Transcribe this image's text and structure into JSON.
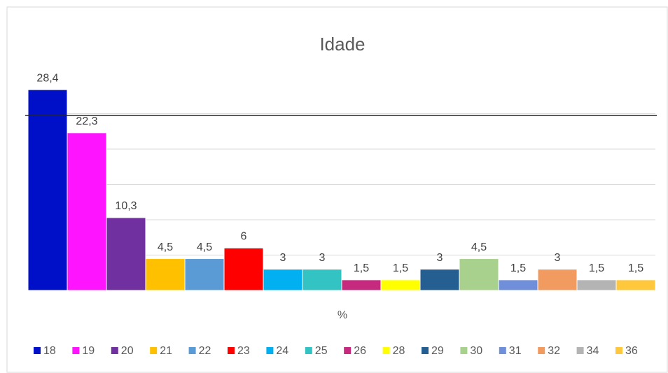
{
  "chart_data": {
    "type": "bar",
    "title": "Idade",
    "x_label": "%",
    "categories": [
      "%"
    ],
    "series": [
      {
        "name": "18",
        "color": "#0010c8",
        "values": [
          28.4
        ],
        "value_labels": [
          "28,4"
        ]
      },
      {
        "name": "19",
        "color": "#ff14ff",
        "values": [
          22.3
        ],
        "value_labels": [
          "22,3"
        ]
      },
      {
        "name": "20",
        "color": "#7030a0",
        "values": [
          10.3
        ],
        "value_labels": [
          "10,3"
        ]
      },
      {
        "name": "21",
        "color": "#ffc000",
        "values": [
          4.5
        ],
        "value_labels": [
          "4,5"
        ]
      },
      {
        "name": "22",
        "color": "#5b9bd5",
        "values": [
          4.5
        ],
        "value_labels": [
          "4,5"
        ]
      },
      {
        "name": "23",
        "color": "#ff0000",
        "values": [
          6
        ]
      },
      {
        "name": "24",
        "color": "#00b0f0",
        "values": [
          3
        ]
      },
      {
        "name": "25",
        "color": "#33c3c3",
        "values": [
          3
        ]
      },
      {
        "name": "26",
        "color": "#c62a7f",
        "values": [
          1.5
        ],
        "value_labels": [
          "1,5"
        ]
      },
      {
        "name": "28",
        "color": "#ffff00",
        "values": [
          1.5
        ],
        "value_labels": [
          "1,5"
        ]
      },
      {
        "name": "29",
        "color": "#255e91",
        "values": [
          3
        ]
      },
      {
        "name": "30",
        "color": "#a9d18e",
        "values": [
          4.5
        ],
        "value_labels": [
          "4,5"
        ]
      },
      {
        "name": "31",
        "color": "#6f8fdb",
        "values": [
          1.5
        ],
        "value_labels": [
          "1,5"
        ]
      },
      {
        "name": "32",
        "color": "#f19b61",
        "values": [
          3
        ]
      },
      {
        "name": "34",
        "color": "#b4b4b4",
        "values": [
          1.5
        ],
        "value_labels": [
          "1,5"
        ]
      },
      {
        "name": "36",
        "color": "#ffc83c",
        "values": [
          1.5
        ],
        "value_labels": [
          "1,5"
        ]
      }
    ],
    "ylim": [
      0,
      30
    ],
    "yticks": [
      0,
      5,
      10,
      15,
      20,
      25
    ],
    "grid": true,
    "show_ytick_labels": false,
    "legend": "bottom"
  }
}
